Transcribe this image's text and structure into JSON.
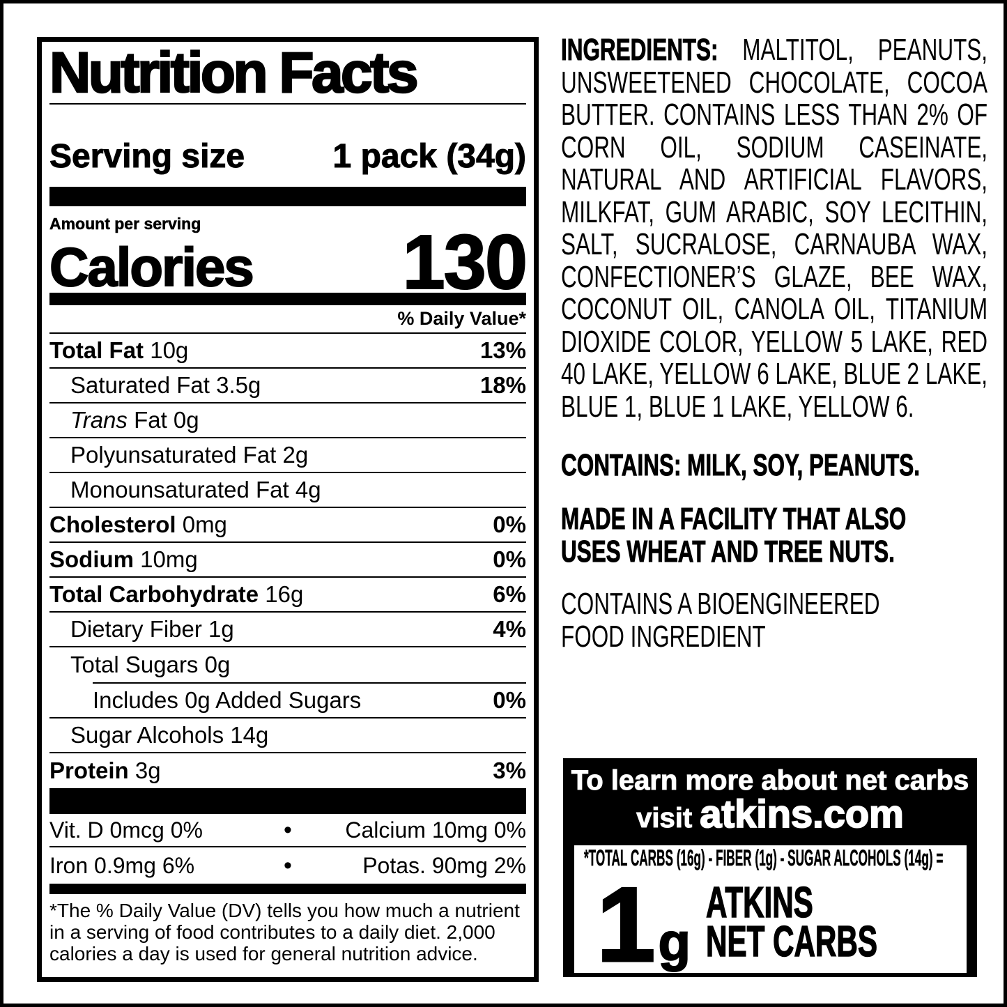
{
  "page": {
    "background": "#ffffff",
    "ink": "#000000"
  },
  "nutrition_label": {
    "title": "Nutrition Facts",
    "serving_size_label": "Serving size",
    "serving_size_value": "1 pack (34g)",
    "amount_per_serving_label": "Amount per serving",
    "calories_label": "Calories",
    "calories_value": "130",
    "daily_value_header": "% Daily Value*",
    "rows": [
      {
        "bold": "Total Fat",
        "rest": " 10g",
        "dv": "13%"
      },
      {
        "rest": "Saturated Fat 3.5g",
        "dv": "18%"
      },
      {
        "italic": "Trans",
        "rest": " Fat 0g",
        "dv": ""
      },
      {
        "rest": "Polyunsaturated Fat 2g",
        "dv": ""
      },
      {
        "rest": "Monounsaturated Fat 4g",
        "dv": ""
      },
      {
        "bold": "Cholesterol",
        "rest": " 0mg",
        "dv": "0%"
      },
      {
        "bold": "Sodium",
        "rest": " 10mg",
        "dv": "0%"
      },
      {
        "bold": "Total Carbohydrate",
        "rest": " 16g",
        "dv": "6%"
      },
      {
        "rest": "Dietary Fiber 1g",
        "dv": "4%"
      },
      {
        "rest": "Total Sugars 0g",
        "dv": ""
      },
      {
        "rest": "Includes 0g Added Sugars",
        "dv": "0%"
      },
      {
        "rest": "Sugar Alcohols 14g",
        "dv": ""
      },
      {
        "bold": "Protein",
        "rest": " 3g",
        "dv": "3%"
      }
    ],
    "bullet": "•",
    "micros": [
      {
        "left": "Vit. D 0mcg 0%",
        "right": "Calcium 10mg 0%"
      },
      {
        "left": "Iron 0.9mg 6%",
        "right": "Potas. 90mg 2%"
      }
    ],
    "footnote": "*The % Daily Value (DV) tells you how much a nutrient\nin a serving of food contributes to a daily diet. 2,000\ncalories a day is used for general nutrition advice."
  },
  "ingredients": {
    "label": "INGREDIENTS:",
    "line0_rest": " MALTITOL, PEANUTS,",
    "lines": [
      "UNSWEETENED CHOCOLATE, COCOA",
      "BUTTER. CONTAINS LESS THAN 2% OF",
      "CORN OIL, SODIUM CASEINATE,",
      "NATURAL AND ARTIFICIAL FLAVORS,",
      "MILKFAT, GUM ARABIC, SOY LECITHIN,",
      "SALT, SUCRALOSE, CARNAUBA WAX,",
      "CONFECTIONER’S GLAZE, BEE WAX,",
      "COCONUT OIL, CANOLA OIL, TITANIUM",
      "DIOXIDE COLOR, YELLOW 5 LAKE, RED",
      "40 LAKE, YELLOW 6 LAKE, BLUE 2 LAKE,",
      "BLUE 1, BLUE 1 LAKE, YELLOW 6."
    ],
    "contains": "CONTAINS: MILK, SOY, PEANUTS.",
    "facility": "MADE IN A FACILITY THAT ALSO\nUSES WHEAT AND TREE NUTS.",
    "bioengineered": "CONTAINS A BIOENGINEERED\nFOOD INGREDIENT"
  },
  "net_carbs_box": {
    "headline": "To learn more about net carbs",
    "visit_prefix": "visit ",
    "domain": "atkins.com",
    "formula": "*TOTAL CARBS (16g) - FIBER (1g) - SUGAR ALCOHOLS (14g) =",
    "value": "1",
    "unit": "g",
    "brand": "ATKINS\nNET CARBS"
  }
}
